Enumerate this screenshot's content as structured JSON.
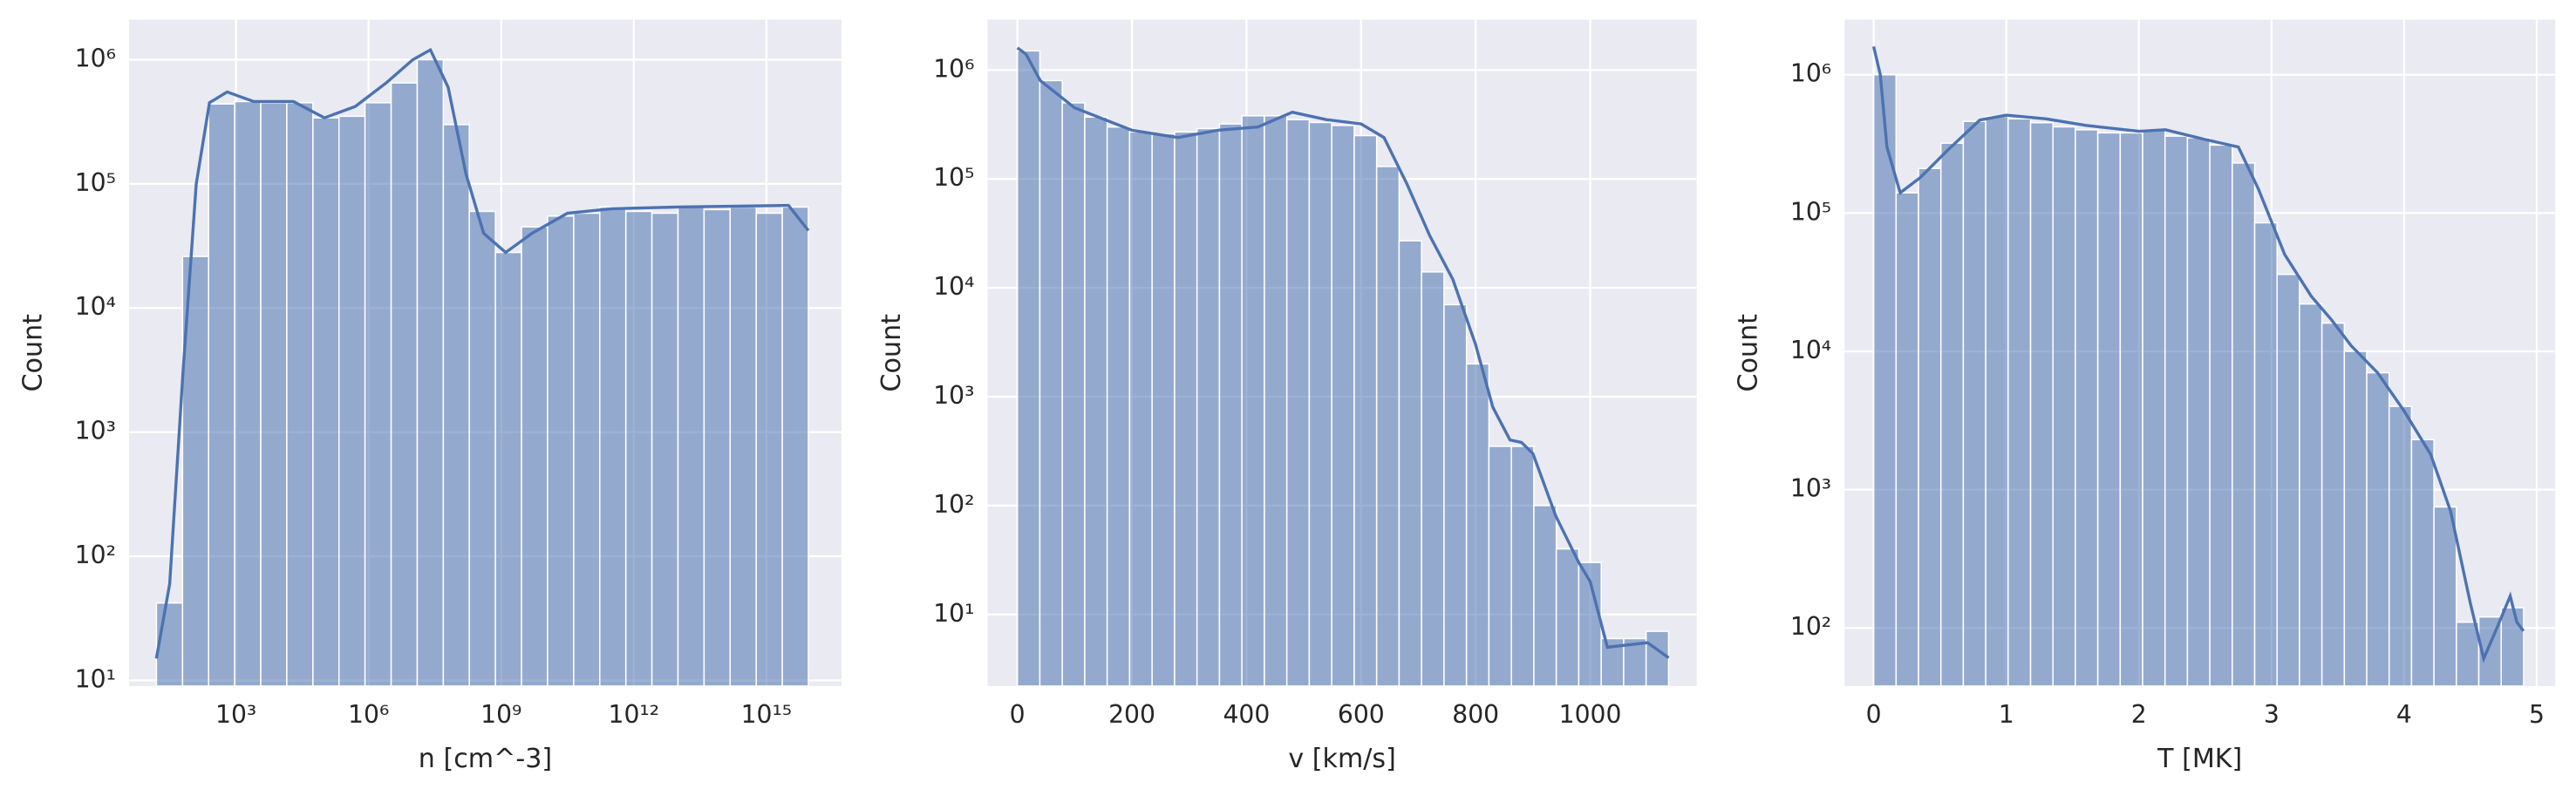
{
  "chart_data": [
    {
      "type": "histogram",
      "xlabel": "n [cm^-3]",
      "ylabel": "Count",
      "xlog": true,
      "ylog": true,
      "grid": true,
      "color": "#4c72b0",
      "bins": [
        15.85,
        61.7,
        240,
        933,
        3630,
        14100,
        55000,
        214000,
        830000,
        3240000,
        12600000,
        49000000,
        190000000,
        741000000,
        2880000000,
        11200000000,
        43700000000,
        170000000000,
        661000000000,
        2570000000000,
        10000000000000,
        38900000000000,
        151000000000000,
        589000000000000,
        2290000000000000,
        8910000000000000
      ],
      "values": [
        42,
        26000,
        440000,
        460000,
        450000,
        450000,
        340000,
        350000,
        450000,
        650000,
        1000000,
        300000,
        60000,
        28000,
        45000,
        55000,
        58000,
        65000,
        60000,
        58000,
        65000,
        62000,
        65000,
        58000,
        65000
      ],
      "kde": {
        "x": [
          15.8,
          31.6,
          63,
          126,
          251,
          631,
          2512,
          20000,
          100000,
          500000,
          2500000,
          10000000,
          25000000,
          63000000,
          160000000,
          400000000,
          1260000000,
          5000000000,
          31600000000,
          316000000000,
          10000000000000,
          3160000000000000,
          8910000000000000
        ],
        "values": [
          15,
          60,
          3000,
          100000,
          450000,
          550000,
          460000,
          460000,
          340000,
          420000,
          650000,
          1000000,
          1200000,
          600000,
          120000,
          40000,
          28000,
          40000,
          58000,
          63000,
          65000,
          67000,
          42000
        ]
      },
      "xlim": [
        3.8,
        50000000000000000
      ],
      "xticks": [
        {
          "value": 1000,
          "label": "10³"
        },
        {
          "value": 1000000,
          "label": "10⁶"
        },
        {
          "value": 1000000000,
          "label": "10⁹"
        },
        {
          "value": 1000000000000,
          "label": "10¹²"
        },
        {
          "value": 1000000000000000,
          "label": "10¹⁵"
        }
      ],
      "ylim": [
        9,
        2100000
      ],
      "yticks": [
        {
          "value": 10,
          "label": "10¹"
        },
        {
          "value": 100,
          "label": "10²"
        },
        {
          "value": 1000,
          "label": "10³"
        },
        {
          "value": 10000,
          "label": "10⁴"
        },
        {
          "value": 100000,
          "label": "10⁵"
        },
        {
          "value": 1000000,
          "label": "10⁶"
        }
      ]
    },
    {
      "type": "histogram",
      "xlabel": "v [km/s]",
      "ylabel": "Count",
      "xlog": false,
      "ylog": true,
      "grid": true,
      "color": "#4c72b0",
      "bins": [
        0,
        39.2,
        78.4,
        117.6,
        156.8,
        196,
        235.2,
        274.4,
        313.6,
        352.8,
        392,
        431.2,
        470.4,
        509.6,
        548.8,
        588,
        627.2,
        666.4,
        705.6,
        744.8,
        784,
        823.2,
        862.4,
        901.6,
        940.8,
        980,
        1019.2,
        1058.4,
        1097.6,
        1136.8
      ],
      "values": [
        1500000,
        800000,
        500000,
        370000,
        300000,
        270000,
        260000,
        270000,
        290000,
        320000,
        380000,
        380000,
        350000,
        330000,
        310000,
        250000,
        130000,
        27000,
        14000,
        7000,
        2000,
        350,
        350,
        100,
        40,
        30,
        6,
        6,
        7
      ],
      "kde": {
        "x": [
          0,
          15,
          40,
          100,
          200,
          280,
          350,
          420,
          480,
          540,
          600,
          640,
          680,
          720,
          760,
          800,
          830,
          860,
          880,
          900,
          940,
          980,
          1000,
          1030,
          1100,
          1137
        ],
        "values": [
          1600000,
          1400000,
          800000,
          450000,
          280000,
          240000,
          280000,
          300000,
          410000,
          350000,
          320000,
          240000,
          90000,
          30000,
          12000,
          3000,
          800,
          400,
          380,
          300,
          80,
          30,
          20,
          5,
          5.5,
          4
        ]
      },
      "xlim": [
        -52,
        1186
      ],
      "xticks": [
        0,
        200,
        400,
        600,
        800,
        1000
      ],
      "ylim": [
        2.2,
        2900000
      ],
      "yticks": [
        {
          "value": 10,
          "label": "10¹"
        },
        {
          "value": 100,
          "label": "10²"
        },
        {
          "value": 1000,
          "label": "10³"
        },
        {
          "value": 10000,
          "label": "10⁴"
        },
        {
          "value": 100000,
          "label": "10⁵"
        },
        {
          "value": 1000000,
          "label": "10⁶"
        }
      ]
    },
    {
      "type": "histogram",
      "xlabel": "T [MK]",
      "ylabel": "Count",
      "xlog": false,
      "ylog": true,
      "grid": true,
      "color": "#4c72b0",
      "bins": [
        0,
        0.169,
        0.338,
        0.507,
        0.676,
        0.845,
        1.014,
        1.183,
        1.352,
        1.521,
        1.69,
        1.859,
        2.028,
        2.197,
        2.366,
        2.535,
        2.704,
        2.873,
        3.042,
        3.211,
        3.38,
        3.549,
        3.718,
        3.887,
        4.056,
        4.225,
        4.394,
        4.563,
        4.732,
        4.901
      ],
      "values": [
        1000000,
        140000,
        210000,
        320000,
        460000,
        500000,
        480000,
        450000,
        420000,
        400000,
        380000,
        380000,
        400000,
        360000,
        350000,
        310000,
        230000,
        85000,
        36000,
        22000,
        16000,
        10000,
        7000,
        4000,
        2300,
        750,
        110,
        120,
        140
      ],
      "kde": {
        "x": [
          0,
          0.05,
          0.1,
          0.2,
          0.35,
          0.55,
          0.8,
          1.0,
          1.3,
          1.6,
          2.0,
          2.2,
          2.5,
          2.75,
          2.9,
          3.1,
          3.3,
          3.45,
          3.6,
          3.8,
          4.0,
          4.2,
          4.35,
          4.5,
          4.6,
          4.7,
          4.8,
          4.85,
          4.9
        ],
        "values": [
          1600000,
          1000000,
          300000,
          140000,
          180000,
          280000,
          470000,
          510000,
          480000,
          430000,
          390000,
          400000,
          340000,
          300000,
          150000,
          50000,
          25000,
          17000,
          11000,
          7000,
          3700,
          1800,
          700,
          150,
          60,
          100,
          170,
          110,
          95
        ]
      },
      "xlim": [
        -0.22,
        5.14
      ],
      "xticks": [
        0,
        1,
        2,
        3,
        4,
        5
      ],
      "ylim": [
        38,
        2500000
      ],
      "yticks": [
        {
          "value": 100,
          "label": "10²"
        },
        {
          "value": 1000,
          "label": "10³"
        },
        {
          "value": 10000,
          "label": "10⁴"
        },
        {
          "value": 100000,
          "label": "10⁵"
        },
        {
          "value": 1000000,
          "label": "10⁶"
        }
      ]
    }
  ]
}
